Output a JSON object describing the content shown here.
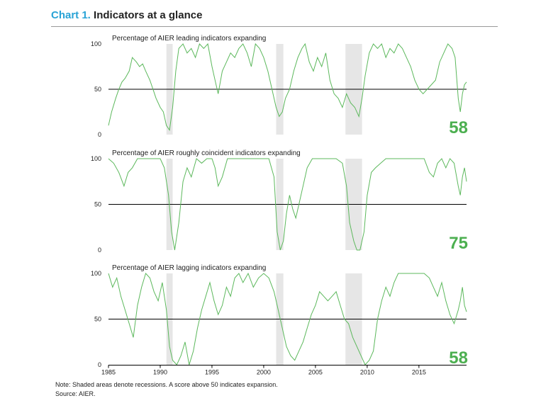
{
  "header": {
    "chart_label": "Chart 1.",
    "chart_title": "Indicators at a glance"
  },
  "footer": {
    "note": "Note: Shaded areas denote recessions. A score above 50 indicates expansion.",
    "source": "Source: AIER."
  },
  "colors": {
    "line": "#5cb85c",
    "value": "#4caf50",
    "recession": "#e6e6e6",
    "title_accent": "#29a3d6"
  },
  "chart_data": {
    "type": "line",
    "x_ticks": [
      "1985",
      "1990",
      "1995",
      "2000",
      "2005",
      "2010",
      "2015"
    ],
    "xlim": [
      1985,
      2019.6
    ],
    "recessions": [
      [
        1990.6,
        1991.2
      ],
      [
        2001.2,
        2001.9
      ],
      [
        2007.9,
        2009.5
      ]
    ],
    "reference_line": 50,
    "panels": [
      {
        "id": "leading",
        "title": "Percentage of AIER leading indicators expanding",
        "ylim": [
          0,
          100
        ],
        "yticks": [
          "0",
          "50",
          "100"
        ],
        "current_value": "58",
        "series": {
          "x": [
            1985.0,
            1985.3,
            1985.7,
            1986.0,
            1986.3,
            1986.6,
            1987.0,
            1987.3,
            1987.7,
            1988.0,
            1988.3,
            1988.6,
            1989.0,
            1989.3,
            1989.6,
            1990.0,
            1990.3,
            1990.6,
            1990.9,
            1991.2,
            1991.5,
            1991.8,
            1992.2,
            1992.6,
            1993.0,
            1993.4,
            1993.8,
            1994.2,
            1994.6,
            1995.0,
            1995.3,
            1995.6,
            1996.0,
            1996.4,
            1996.8,
            1997.2,
            1997.6,
            1998.0,
            1998.4,
            1998.8,
            1999.2,
            1999.6,
            2000.0,
            2000.4,
            2000.8,
            2001.2,
            2001.5,
            2001.8,
            2002.1,
            2002.5,
            2002.9,
            2003.3,
            2003.7,
            2004.0,
            2004.4,
            2004.8,
            2005.2,
            2005.6,
            2006.0,
            2006.4,
            2006.8,
            2007.2,
            2007.6,
            2008.0,
            2008.4,
            2008.8,
            2009.2,
            2009.5,
            2009.8,
            2010.2,
            2010.6,
            2011.0,
            2011.4,
            2011.8,
            2012.2,
            2012.6,
            2013.0,
            2013.4,
            2013.8,
            2014.2,
            2014.6,
            2015.0,
            2015.4,
            2015.8,
            2016.2,
            2016.6,
            2017.0,
            2017.4,
            2017.8,
            2018.2,
            2018.5,
            2018.8,
            2019.0,
            2019.2,
            2019.4,
            2019.6
          ],
          "y": [
            10,
            25,
            40,
            50,
            58,
            62,
            70,
            85,
            80,
            75,
            78,
            70,
            60,
            50,
            40,
            30,
            25,
            10,
            5,
            30,
            70,
            95,
            100,
            90,
            95,
            85,
            100,
            95,
            100,
            75,
            60,
            45,
            70,
            80,
            90,
            85,
            95,
            100,
            90,
            75,
            100,
            95,
            85,
            70,
            50,
            30,
            20,
            25,
            40,
            50,
            70,
            85,
            95,
            100,
            80,
            70,
            85,
            75,
            90,
            60,
            45,
            40,
            30,
            45,
            35,
            30,
            20,
            40,
            65,
            90,
            100,
            95,
            100,
            85,
            95,
            90,
            100,
            95,
            85,
            75,
            60,
            50,
            45,
            50,
            55,
            60,
            80,
            90,
            100,
            95,
            85,
            40,
            25,
            45,
            55,
            58
          ]
        }
      },
      {
        "id": "coincident",
        "title": "Percentage of AIER roughly coincident indicators expanding",
        "ylim": [
          0,
          100
        ],
        "yticks": [
          "0",
          "50",
          "100"
        ],
        "current_value": "75",
        "series": {
          "x": [
            1985.0,
            1985.5,
            1986.0,
            1986.5,
            1986.9,
            1987.3,
            1987.8,
            1988.3,
            1988.8,
            1989.4,
            1990.0,
            1990.4,
            1990.8,
            1991.1,
            1991.4,
            1991.8,
            1992.2,
            1992.6,
            1993.0,
            1993.5,
            1994.0,
            1994.5,
            1995.0,
            1995.3,
            1995.6,
            1996.0,
            1996.5,
            1997.0,
            1998.0,
            1999.0,
            2000.0,
            2000.5,
            2001.0,
            2001.3,
            2001.6,
            2001.9,
            2002.2,
            2002.5,
            2002.8,
            2003.1,
            2003.4,
            2003.8,
            2004.2,
            2004.7,
            2005.2,
            2006.0,
            2007.0,
            2007.6,
            2008.0,
            2008.3,
            2008.7,
            2009.0,
            2009.3,
            2009.7,
            2010.0,
            2010.4,
            2010.8,
            2011.3,
            2011.8,
            2012.5,
            2013.5,
            2014.5,
            2015.5,
            2016.0,
            2016.4,
            2016.8,
            2017.2,
            2017.6,
            2018.0,
            2018.4,
            2018.8,
            2019.0,
            2019.2,
            2019.4,
            2019.6
          ],
          "y": [
            100,
            95,
            85,
            70,
            85,
            90,
            100,
            100,
            100,
            100,
            100,
            90,
            60,
            20,
            0,
            30,
            75,
            90,
            80,
            100,
            95,
            100,
            100,
            90,
            70,
            80,
            100,
            100,
            100,
            100,
            100,
            100,
            80,
            20,
            0,
            10,
            40,
            60,
            45,
            35,
            50,
            70,
            90,
            100,
            100,
            100,
            100,
            95,
            70,
            30,
            10,
            0,
            0,
            20,
            60,
            85,
            90,
            95,
            100,
            100,
            100,
            100,
            100,
            85,
            80,
            95,
            100,
            90,
            100,
            95,
            70,
            60,
            80,
            90,
            75
          ]
        }
      },
      {
        "id": "lagging",
        "title": "Percentage of AIER lagging indicators expanding",
        "ylim": [
          0,
          100
        ],
        "yticks": [
          "0",
          "50",
          "100"
        ],
        "current_value": "58",
        "series": {
          "x": [
            1985.0,
            1985.4,
            1985.8,
            1986.2,
            1986.6,
            1987.0,
            1987.4,
            1987.8,
            1988.2,
            1988.6,
            1989.0,
            1989.4,
            1989.8,
            1990.2,
            1990.6,
            1990.9,
            1991.2,
            1991.6,
            1992.0,
            1992.4,
            1992.8,
            1993.2,
            1993.6,
            1994.0,
            1994.4,
            1994.8,
            1995.2,
            1995.6,
            1996.0,
            1996.4,
            1996.8,
            1997.2,
            1997.6,
            1998.0,
            1998.5,
            1999.0,
            1999.5,
            2000.0,
            2000.5,
            2001.0,
            2001.4,
            2001.8,
            2002.2,
            2002.6,
            2003.0,
            2003.4,
            2003.8,
            2004.2,
            2004.6,
            2005.0,
            2005.4,
            2005.8,
            2006.2,
            2006.6,
            2007.0,
            2007.4,
            2007.8,
            2008.2,
            2008.6,
            2009.0,
            2009.4,
            2009.8,
            2010.2,
            2010.6,
            2011.0,
            2011.4,
            2011.8,
            2012.2,
            2012.6,
            2013.0,
            2013.5,
            2014.0,
            2014.5,
            2015.0,
            2015.5,
            2016.0,
            2016.4,
            2016.8,
            2017.2,
            2017.6,
            2018.0,
            2018.4,
            2018.8,
            2019.0,
            2019.2,
            2019.4,
            2019.6
          ],
          "y": [
            100,
            85,
            95,
            75,
            60,
            45,
            30,
            65,
            85,
            100,
            95,
            80,
            70,
            90,
            60,
            20,
            5,
            0,
            10,
            25,
            0,
            15,
            40,
            60,
            75,
            90,
            70,
            55,
            65,
            85,
            75,
            95,
            100,
            90,
            100,
            85,
            95,
            100,
            95,
            80,
            60,
            40,
            20,
            10,
            5,
            15,
            25,
            40,
            55,
            65,
            80,
            75,
            70,
            75,
            80,
            65,
            50,
            45,
            30,
            20,
            10,
            0,
            5,
            15,
            50,
            70,
            85,
            75,
            90,
            100,
            100,
            100,
            100,
            100,
            100,
            95,
            85,
            75,
            90,
            70,
            55,
            45,
            60,
            70,
            85,
            65,
            58
          ]
        }
      }
    ]
  }
}
